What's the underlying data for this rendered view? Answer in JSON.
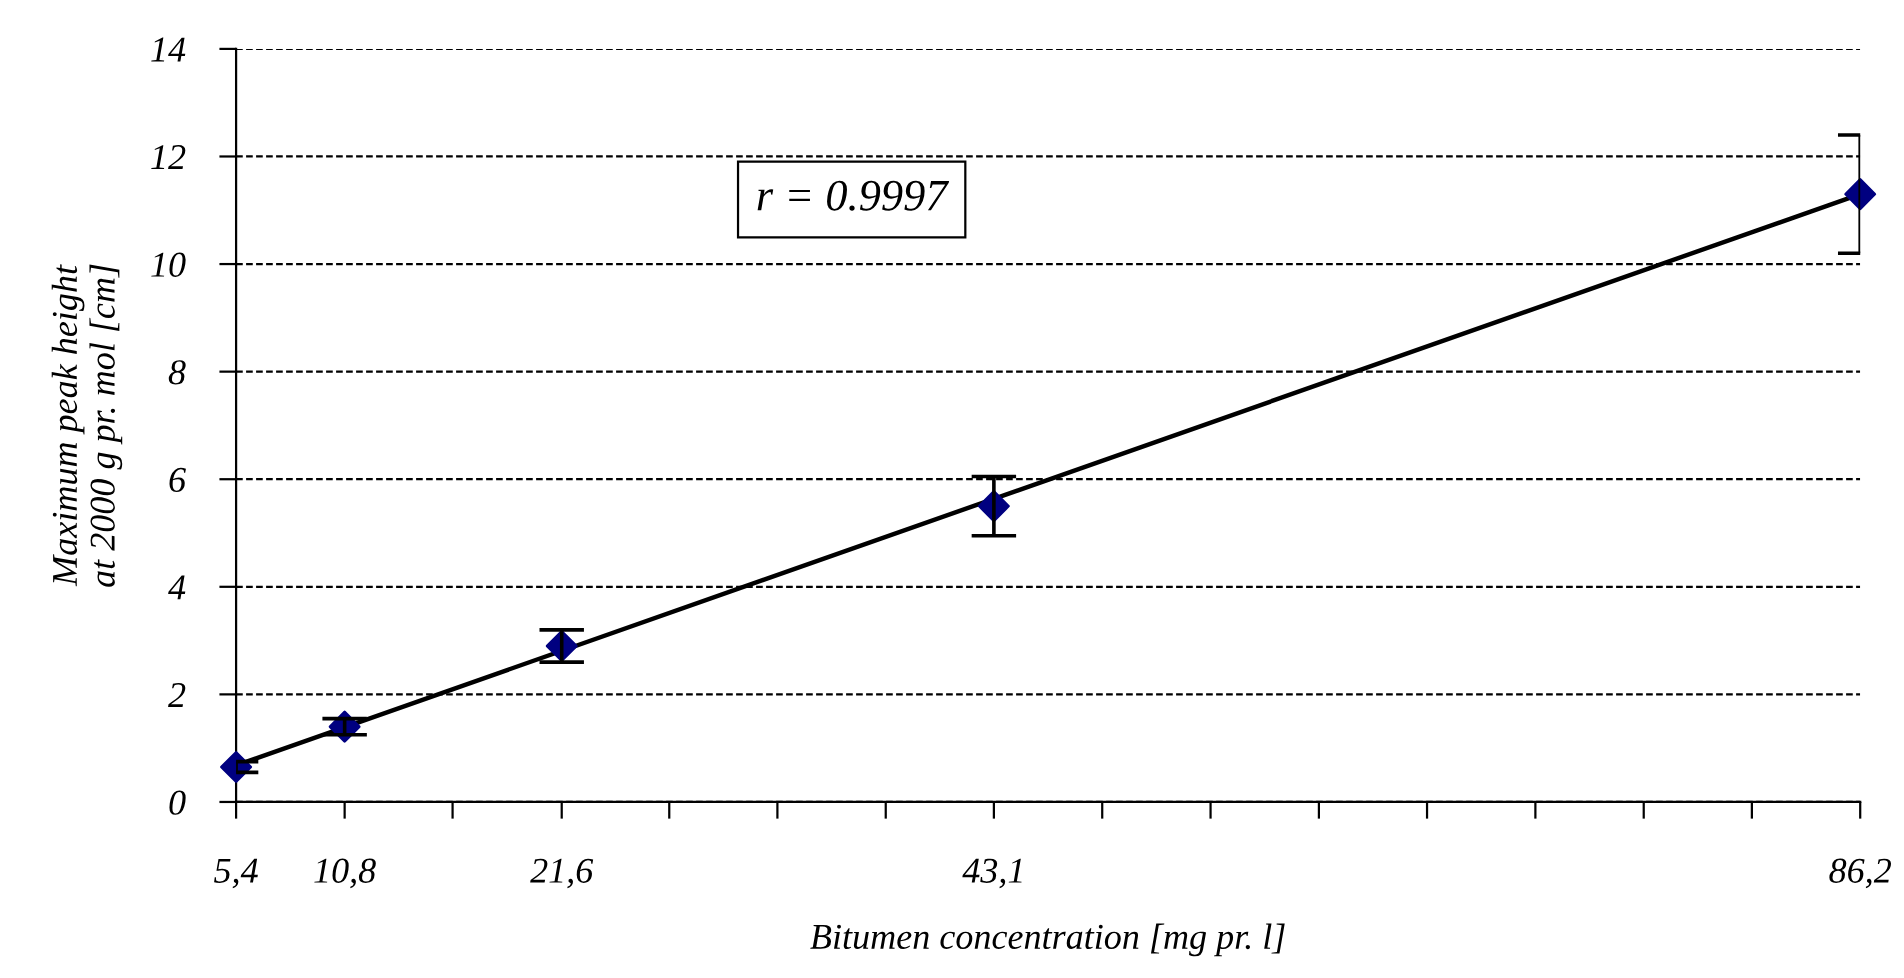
{
  "chart_data": {
    "type": "scatter",
    "xlabel": "Bitumen concentration [mg pr. l]",
    "ylabel": "Maximum peak height\nat 2000 g pr. mol [cm]",
    "xlim": [
      5.4,
      86.2
    ],
    "ylim": [
      0,
      14
    ],
    "xticks": [
      {
        "value": 5.4,
        "label": "5,4"
      },
      {
        "value": 10.8,
        "label": "10,8"
      },
      {
        "value": 16.17,
        "label": null
      },
      {
        "value": 21.6,
        "label": "21,6"
      },
      {
        "value": 26.95,
        "label": null
      },
      {
        "value": 32.33,
        "label": null
      },
      {
        "value": 37.72,
        "label": null
      },
      {
        "value": 43.1,
        "label": "43,1"
      },
      {
        "value": 48.49,
        "label": null
      },
      {
        "value": 53.88,
        "label": null
      },
      {
        "value": 59.27,
        "label": null
      },
      {
        "value": 64.65,
        "label": null
      },
      {
        "value": 70.04,
        "label": null
      },
      {
        "value": 75.43,
        "label": null
      },
      {
        "value": 80.81,
        "label": null
      },
      {
        "value": 86.2,
        "label": "86,2"
      }
    ],
    "yticks": [
      0,
      2,
      4,
      6,
      8,
      10,
      12,
      14
    ],
    "grid": "y",
    "annotations": [
      "r = 0.9997"
    ],
    "series": [
      {
        "marker": "diamond",
        "color": "#000080",
        "x": [
          5.4,
          10.8,
          21.6,
          43.1,
          86.2
        ],
        "values": [
          0.65,
          1.4,
          2.9,
          5.5,
          11.3
        ],
        "errors": [
          0.1,
          0.15,
          0.3,
          0.55,
          1.1
        ]
      },
      {
        "type": "line",
        "color": "#000000",
        "x": [
          5.4,
          86.2
        ],
        "values": [
          0.68,
          11.3
        ],
        "line_style": "solid"
      }
    ]
  }
}
